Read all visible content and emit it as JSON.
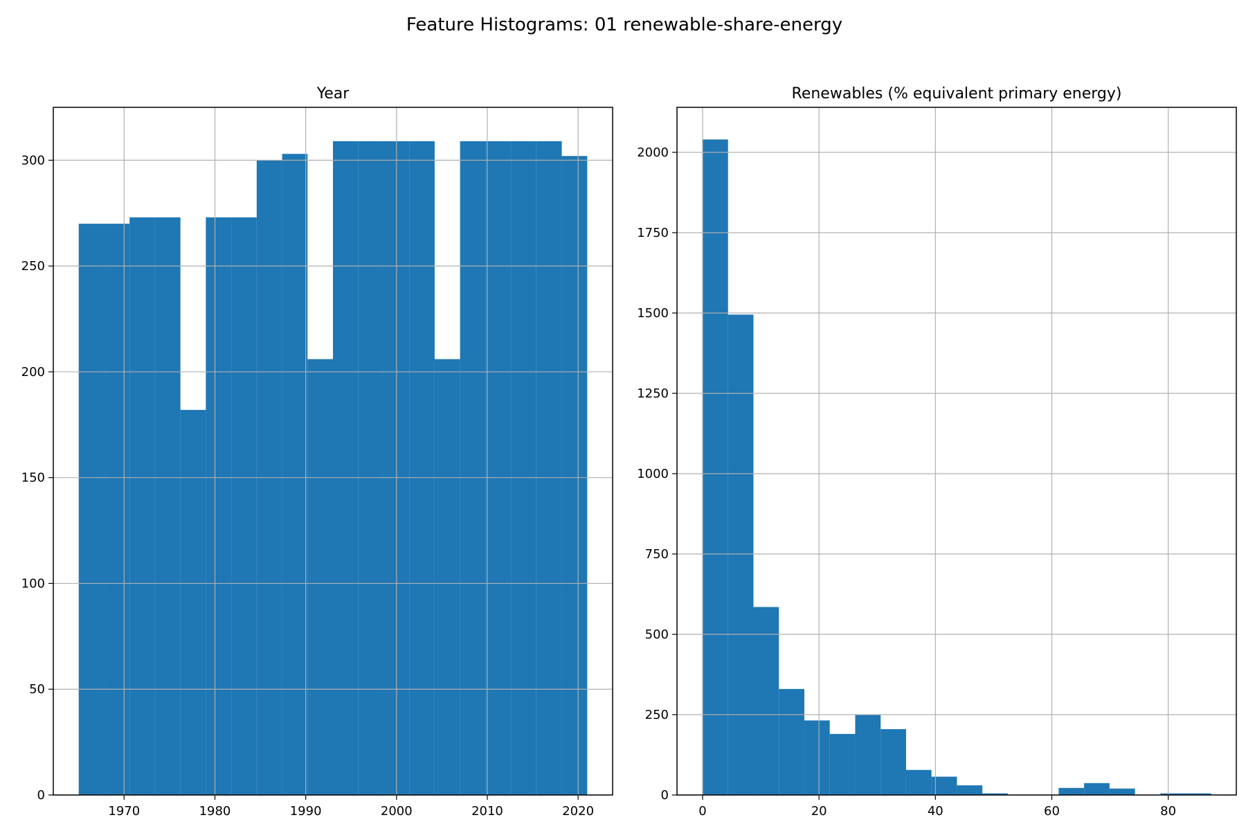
{
  "figure": {
    "suptitle": "Feature Histograms: 01 renewable-share-energy",
    "bar_color": "#1f77b4",
    "grid": true
  },
  "chart_data": [
    {
      "type": "bar",
      "title": "Year",
      "xlabel": "",
      "ylabel": "",
      "xlim": [
        1962.2,
        2023.8
      ],
      "ylim": [
        0,
        325
      ],
      "xticks": [
        1970,
        1980,
        1990,
        2000,
        2010,
        2020
      ],
      "yticks": [
        0,
        50,
        100,
        150,
        200,
        250,
        300
      ],
      "bins": [
        {
          "x0": 1965.0,
          "x1": 1967.8,
          "value": 270
        },
        {
          "x0": 1967.8,
          "x1": 1970.6,
          "value": 270
        },
        {
          "x0": 1970.6,
          "x1": 1973.4,
          "value": 273
        },
        {
          "x0": 1973.4,
          "x1": 1976.2,
          "value": 273
        },
        {
          "x0": 1976.2,
          "x1": 1979.0,
          "value": 182
        },
        {
          "x0": 1979.0,
          "x1": 1981.8,
          "value": 273
        },
        {
          "x0": 1981.8,
          "x1": 1984.6,
          "value": 273
        },
        {
          "x0": 1984.6,
          "x1": 1987.4,
          "value": 300
        },
        {
          "x0": 1987.4,
          "x1": 1990.2,
          "value": 303
        },
        {
          "x0": 1990.2,
          "x1": 1993.0,
          "value": 206
        },
        {
          "x0": 1993.0,
          "x1": 1995.8,
          "value": 309
        },
        {
          "x0": 1995.8,
          "x1": 1998.6,
          "value": 309
        },
        {
          "x0": 1998.6,
          "x1": 2001.4,
          "value": 309
        },
        {
          "x0": 2001.4,
          "x1": 2004.2,
          "value": 309
        },
        {
          "x0": 2004.2,
          "x1": 2007.0,
          "value": 206
        },
        {
          "x0": 2007.0,
          "x1": 2009.8,
          "value": 309
        },
        {
          "x0": 2009.8,
          "x1": 2012.6,
          "value": 309
        },
        {
          "x0": 2012.6,
          "x1": 2015.4,
          "value": 309
        },
        {
          "x0": 2015.4,
          "x1": 2018.2,
          "value": 309
        },
        {
          "x0": 2018.2,
          "x1": 2021.0,
          "value": 302
        }
      ]
    },
    {
      "type": "bar",
      "title": "Renewables (% equivalent primary energy)",
      "xlabel": "",
      "ylabel": "",
      "xlim": [
        -4.4,
        91.7
      ],
      "ylim": [
        0,
        2140
      ],
      "xticks": [
        0,
        20,
        40,
        60,
        80
      ],
      "yticks": [
        0,
        250,
        500,
        750,
        1000,
        1250,
        1500,
        1750,
        2000
      ],
      "bins": [
        {
          "x0": 0.0,
          "x1": 4.37,
          "value": 2040
        },
        {
          "x0": 4.37,
          "x1": 8.74,
          "value": 1495
        },
        {
          "x0": 8.74,
          "x1": 13.11,
          "value": 585
        },
        {
          "x0": 13.11,
          "x1": 17.48,
          "value": 330
        },
        {
          "x0": 17.48,
          "x1": 21.85,
          "value": 232
        },
        {
          "x0": 21.85,
          "x1": 26.22,
          "value": 190
        },
        {
          "x0": 26.22,
          "x1": 30.59,
          "value": 250
        },
        {
          "x0": 30.59,
          "x1": 34.96,
          "value": 205
        },
        {
          "x0": 34.96,
          "x1": 39.33,
          "value": 78
        },
        {
          "x0": 39.33,
          "x1": 43.7,
          "value": 57
        },
        {
          "x0": 43.7,
          "x1": 48.07,
          "value": 30
        },
        {
          "x0": 48.07,
          "x1": 52.44,
          "value": 5
        },
        {
          "x0": 52.44,
          "x1": 56.81,
          "value": 0
        },
        {
          "x0": 56.81,
          "x1": 61.18,
          "value": 0
        },
        {
          "x0": 61.18,
          "x1": 65.55,
          "value": 22
        },
        {
          "x0": 65.55,
          "x1": 69.92,
          "value": 37
        },
        {
          "x0": 69.92,
          "x1": 74.29,
          "value": 20
        },
        {
          "x0": 74.29,
          "x1": 78.66,
          "value": 0
        },
        {
          "x0": 78.66,
          "x1": 83.03,
          "value": 5
        },
        {
          "x0": 83.03,
          "x1": 87.4,
          "value": 5
        }
      ]
    }
  ]
}
